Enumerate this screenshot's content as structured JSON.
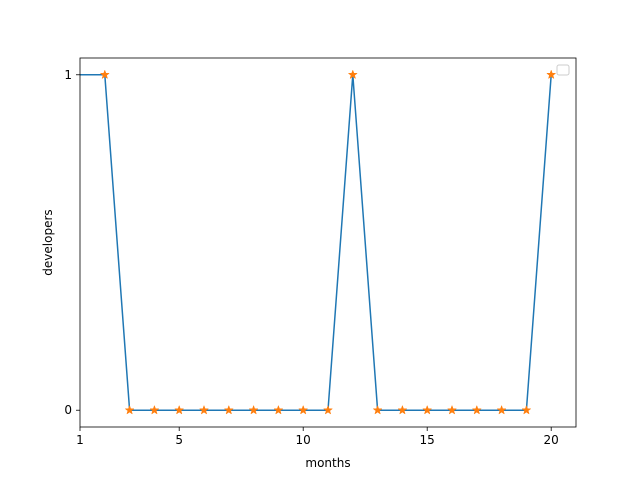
{
  "chart_data": {
    "type": "line",
    "title": "",
    "xlabel": "months",
    "ylabel": "developers",
    "xlim": [
      1,
      21
    ],
    "ylim": [
      -0.05,
      1.05
    ],
    "xticks": [
      1,
      5,
      10,
      15,
      20
    ],
    "yticks": [
      0,
      1
    ],
    "grid": false,
    "legend": {
      "placement": "top-right",
      "entries": []
    },
    "series": [
      {
        "x": [
          1,
          2,
          3,
          4,
          5,
          6,
          7,
          8,
          9,
          10,
          11,
          12,
          13,
          14,
          15,
          16,
          17,
          18,
          19,
          20
        ],
        "values": [
          1,
          1,
          0,
          0,
          0,
          0,
          0,
          0,
          0,
          0,
          0,
          1,
          0,
          0,
          0,
          0,
          0,
          0,
          0,
          1
        ],
        "line_color": "#1f77b4"
      },
      {
        "x": [
          2,
          3,
          4,
          5,
          6,
          7,
          8,
          9,
          10,
          11,
          12,
          13,
          14,
          15,
          16,
          17,
          18,
          19,
          20
        ],
        "values": [
          1,
          0,
          0,
          0,
          0,
          0,
          0,
          0,
          0,
          0,
          1,
          0,
          0,
          0,
          0,
          0,
          0,
          0,
          1
        ],
        "marker": "star",
        "marker_color": "#ff7f0e"
      }
    ]
  }
}
